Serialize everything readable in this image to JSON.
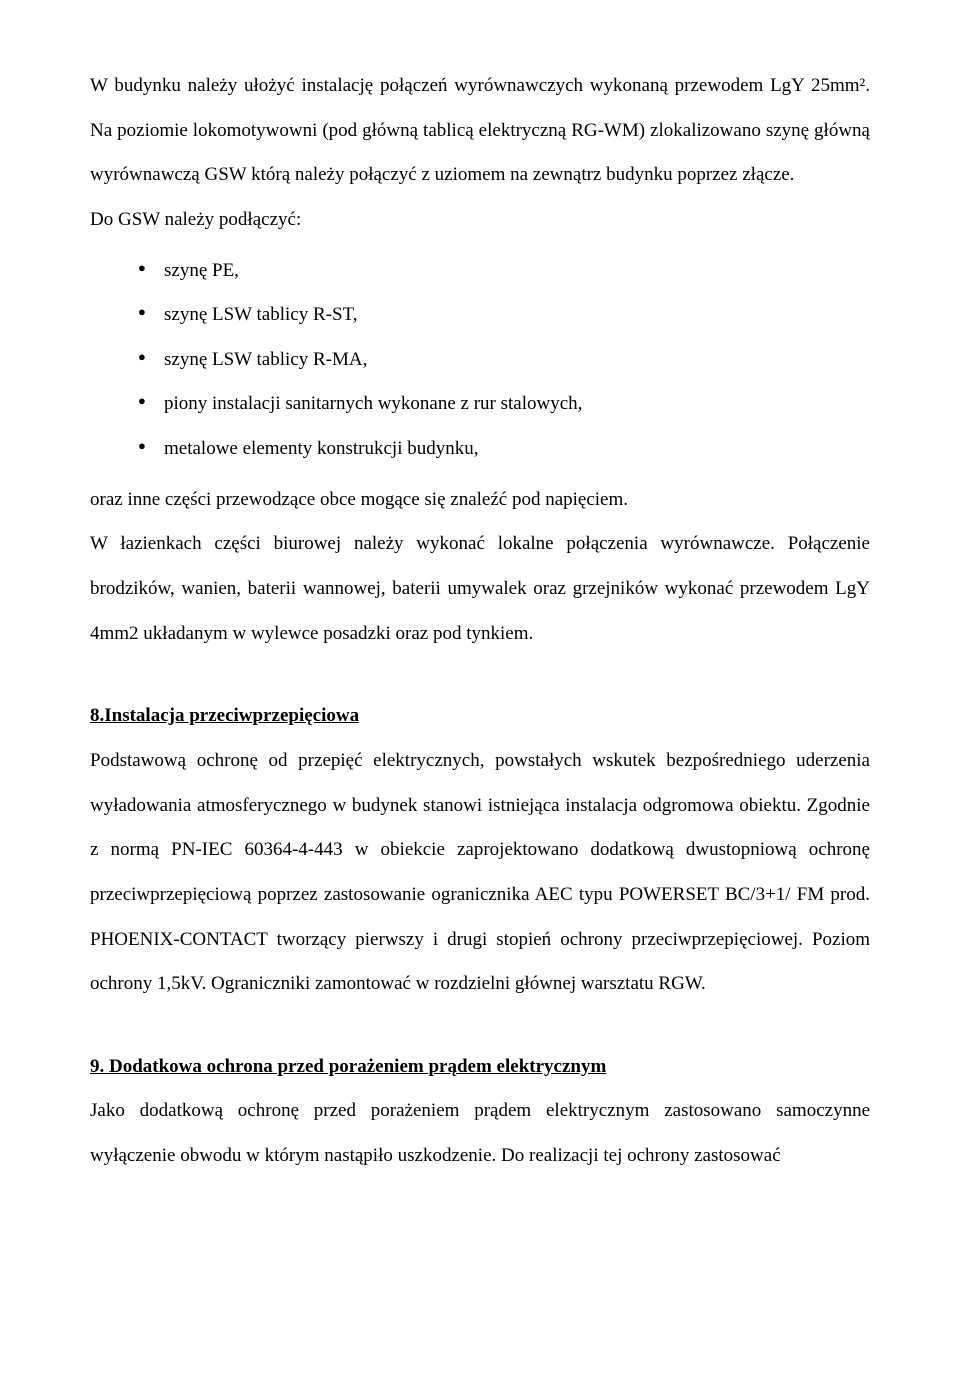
{
  "para1": "W budynku należy ułożyć instalację połączeń wyrównawczych wykonaną przewodem LgY 25mm². Na poziomie lokomotywowni (pod główną tablicą elektryczną RG-WM) zlokalizowano szynę główną wyrównawczą GSW którą należy połączyć z uziomem na zewnątrz budynku poprzez złącze.",
  "intro_list": "Do GSW należy podłączyć:",
  "bullets": {
    "b0": "szynę PE,",
    "b1": "szynę LSW tablicy R-ST,",
    "b2": "szynę LSW tablicy R-MA,",
    "b3": "piony instalacji sanitarnych wykonane z rur stalowych,",
    "b4": "metalowe elementy konstrukcji budynku,"
  },
  "after_list": "oraz inne części przewodzące obce mogące się znaleźć pod napięciem.",
  "para2": "W łazienkach części biurowej należy wykonać lokalne połączenia wyrównawcze. Połączenie brodzików, wanien, baterii wannowej, baterii umywalek oraz grzejników wykonać przewodem LgY 4mm2 układanym w wylewce posadzki oraz pod tynkiem.",
  "heading8": "8.Instalacja przeciwprzepięciowa",
  "para8": "Podstawową ochronę od przepięć elektrycznych, powstałych wskutek bezpośredniego uderzenia wyładowania atmosferycznego w budynek stanowi istniejąca instalacja odgromowa obiektu. Zgodnie z normą PN-IEC 60364-4-443 w obiekcie zaprojektowano dodatkową dwustopniową ochronę przeciwprzepięciową poprzez zastosowanie ogranicznika AEC typu POWERSET BC/3+1/ FM prod. PHOENIX-CONTACT tworzący pierwszy i drugi stopień ochrony przeciwprzepięciowej. Poziom ochrony 1,5kV. Ograniczniki zamontować w rozdzielni głównej warsztatu RGW.",
  "heading9": "9. Dodatkowa ochrona przed porażeniem prądem elektrycznym",
  "para9": "Jako dodatkową ochronę przed porażeniem prądem elektrycznym zastosowano samoczynne wyłączenie obwodu w którym nastąpiło uszkodzenie. Do realizacji tej ochrony zastosować"
}
